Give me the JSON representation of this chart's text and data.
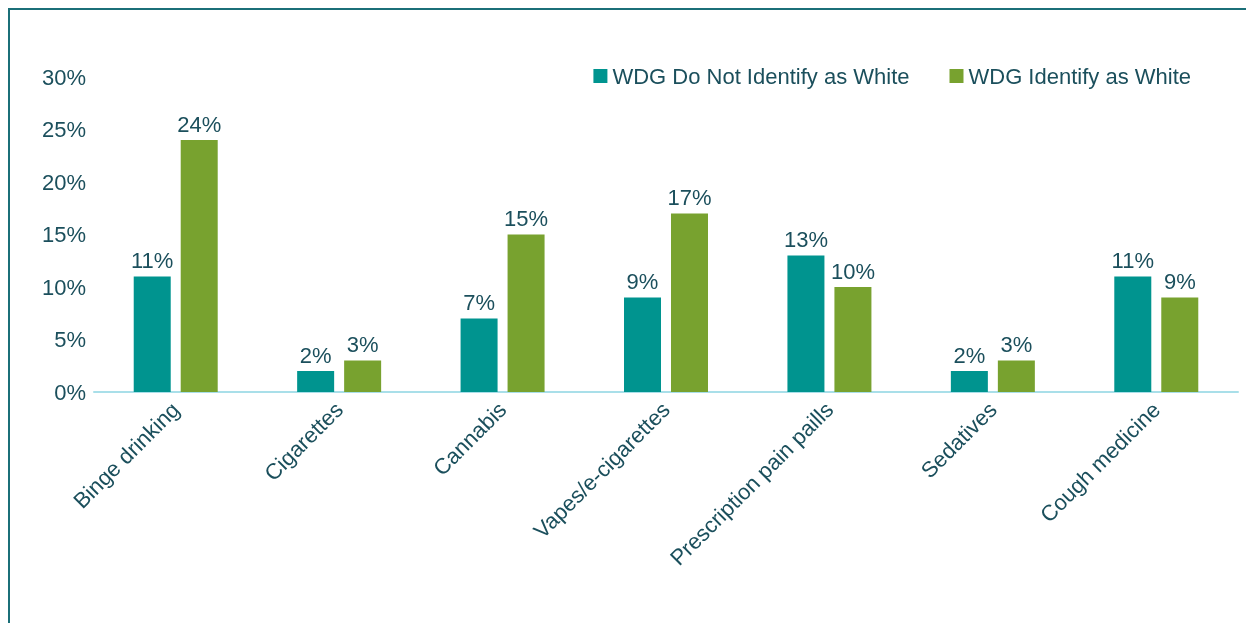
{
  "chart_data": {
    "type": "bar",
    "categories": [
      "Binge drinking",
      "Cigarettes",
      "Cannabis",
      "Vapes/e-cigarettes",
      "Prescription pain paills",
      "Sedatives",
      "Cough medicine"
    ],
    "series": [
      {
        "name": "WDG Do Not Identify as White",
        "color": "#00948f",
        "values": [
          11,
          2,
          7,
          9,
          13,
          2,
          11
        ],
        "value_labels": [
          "11%",
          "2%",
          "7%",
          "9%",
          "13%",
          "2%",
          "11%"
        ]
      },
      {
        "name": "WDG Identify as White",
        "color": "#78a22f",
        "values": [
          24,
          3,
          15,
          17,
          10,
          3,
          9
        ],
        "value_labels": [
          "24%",
          "3%",
          "15%",
          "17%",
          "10%",
          "3%",
          "9%"
        ]
      }
    ],
    "ylim": [
      0,
      30
    ],
    "yticks": [
      {
        "value": 0,
        "label": "0%"
      },
      {
        "value": 5,
        "label": "5%"
      },
      {
        "value": 10,
        "label": "10%"
      },
      {
        "value": 15,
        "label": "15%"
      },
      {
        "value": 20,
        "label": "20%"
      },
      {
        "value": 25,
        "label": "25%"
      },
      {
        "value": 30,
        "label": "30%"
      }
    ],
    "grid": false,
    "legend": "top right"
  }
}
